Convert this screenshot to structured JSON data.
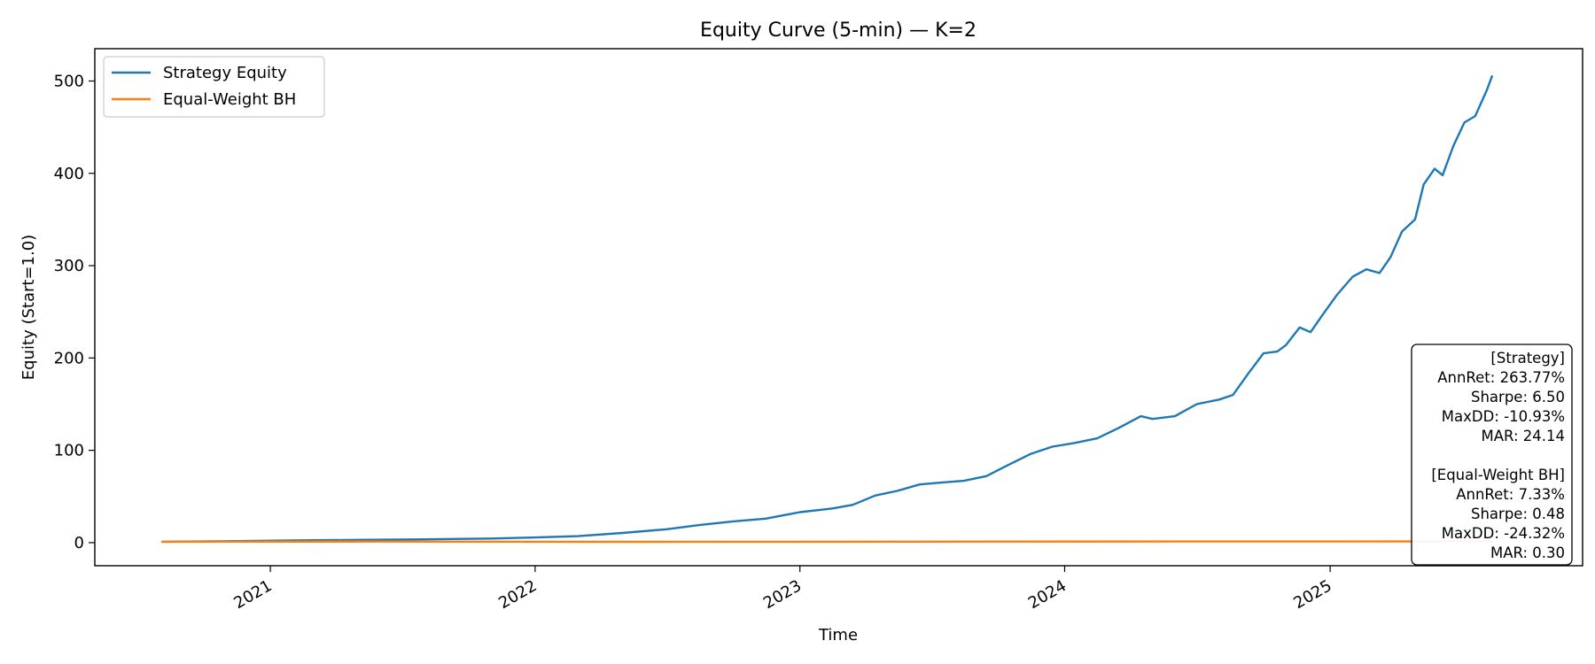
{
  "chart_data": {
    "type": "line",
    "title": "Equity Curve (5-min) — K=2",
    "xlabel": "Time",
    "ylabel": "Equity (Start=1.0)",
    "xlim": [
      "2020-05-04",
      "2025-12-15"
    ],
    "ylim": [
      -25,
      535
    ],
    "x_ticks": [
      {
        "date": "2021-01-01",
        "label": "2021"
      },
      {
        "date": "2022-01-01",
        "label": "2022"
      },
      {
        "date": "2023-01-01",
        "label": "2023"
      },
      {
        "date": "2024-01-01",
        "label": "2024"
      },
      {
        "date": "2025-01-01",
        "label": "2025"
      }
    ],
    "y_ticks": [
      0,
      100,
      200,
      300,
      400,
      500
    ],
    "legend_position": "top-left",
    "grid": false,
    "series": [
      {
        "name": "Strategy Equity",
        "color": "#1f77b4",
        "points": [
          [
            "2020-08-05",
            1
          ],
          [
            "2020-11-01",
            1.6
          ],
          [
            "2021-02-01",
            2.3
          ],
          [
            "2021-05-01",
            3.0
          ],
          [
            "2021-08-01",
            3.6
          ],
          [
            "2021-11-01",
            4.4
          ],
          [
            "2022-01-01",
            5.6
          ],
          [
            "2022-03-01",
            7.0
          ],
          [
            "2022-05-01",
            10.5
          ],
          [
            "2022-07-01",
            14.5
          ],
          [
            "2022-08-15",
            19
          ],
          [
            "2022-10-01",
            23
          ],
          [
            "2022-11-15",
            26
          ],
          [
            "2023-01-01",
            33
          ],
          [
            "2023-02-15",
            37
          ],
          [
            "2023-03-15",
            41
          ],
          [
            "2023-04-15",
            51
          ],
          [
            "2023-05-15",
            56
          ],
          [
            "2023-06-15",
            63
          ],
          [
            "2023-07-15",
            65
          ],
          [
            "2023-08-15",
            67
          ],
          [
            "2023-09-15",
            72
          ],
          [
            "2023-10-15",
            84
          ],
          [
            "2023-11-15",
            96
          ],
          [
            "2023-12-15",
            104
          ],
          [
            "2024-01-15",
            108
          ],
          [
            "2024-02-15",
            113
          ],
          [
            "2024-03-15",
            124
          ],
          [
            "2024-04-15",
            137
          ],
          [
            "2024-05-01",
            134
          ],
          [
            "2024-06-01",
            137
          ],
          [
            "2024-07-01",
            150
          ],
          [
            "2024-08-01",
            155
          ],
          [
            "2024-08-20",
            160
          ],
          [
            "2024-09-10",
            183
          ],
          [
            "2024-10-01",
            205
          ],
          [
            "2024-10-20",
            207
          ],
          [
            "2024-11-01",
            214
          ],
          [
            "2024-11-20",
            233
          ],
          [
            "2024-12-05",
            228
          ],
          [
            "2024-12-20",
            245
          ],
          [
            "2025-01-10",
            268
          ],
          [
            "2025-02-01",
            288
          ],
          [
            "2025-02-20",
            296
          ],
          [
            "2025-03-10",
            292
          ],
          [
            "2025-03-25",
            309
          ],
          [
            "2025-04-10",
            337
          ],
          [
            "2025-04-28",
            350
          ],
          [
            "2025-05-10",
            388
          ],
          [
            "2025-05-25",
            405
          ],
          [
            "2025-06-05",
            398
          ],
          [
            "2025-06-20",
            430
          ],
          [
            "2025-07-05",
            455
          ],
          [
            "2025-07-20",
            462
          ],
          [
            "2025-08-05",
            490
          ],
          [
            "2025-08-12",
            505
          ]
        ]
      },
      {
        "name": "Equal-Weight BH",
        "color": "#ff7f0e",
        "points": [
          [
            "2020-08-05",
            1
          ],
          [
            "2021-06-01",
            1.2
          ],
          [
            "2022-06-01",
            0.9
          ],
          [
            "2023-06-01",
            1.1
          ],
          [
            "2024-06-01",
            1.3
          ],
          [
            "2025-08-12",
            1.4
          ]
        ]
      }
    ],
    "stats_box": {
      "position": "bottom-right",
      "lines": [
        "[Strategy]",
        "AnnRet: 263.77%",
        "Sharpe: 6.50",
        "MaxDD: -10.93%",
        "MAR: 24.14",
        "",
        "[Equal-Weight BH]",
        "AnnRet: 7.33%",
        "Sharpe: 0.48",
        "MaxDD: -24.32%",
        "MAR: 0.30"
      ]
    }
  }
}
